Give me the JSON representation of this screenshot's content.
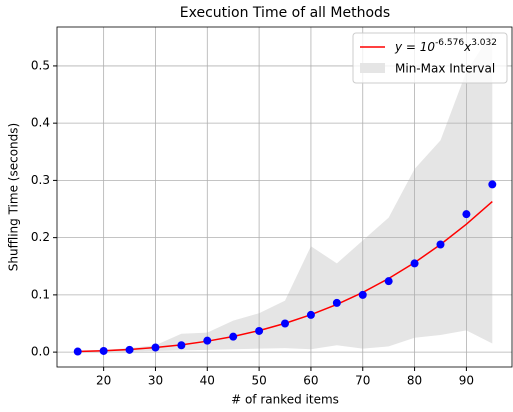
{
  "chart_data": {
    "type": "scatter",
    "title": "Execution Time of all Methods",
    "x_label": "# of ranked items",
    "y_label": "Shuffling Time (seconds)",
    "x": [
      15,
      20,
      25,
      30,
      35,
      40,
      45,
      50,
      55,
      60,
      65,
      70,
      75,
      80,
      85,
      90,
      95
    ],
    "values": [
      0.001,
      0.002,
      0.004,
      0.008,
      0.012,
      0.02,
      0.027,
      0.037,
      0.05,
      0.065,
      0.086,
      0.1,
      0.124,
      0.155,
      0.188,
      0.241,
      0.293
    ],
    "color": "#0000ff",
    "fit": {
      "name": "y = 10^{-6.576}x^{3.032}",
      "color": "#ff0000",
      "values": [
        0.00098,
        0.00234,
        0.0046,
        0.008,
        0.01275,
        0.0191,
        0.0273,
        0.0376,
        0.0502,
        0.0654,
        0.0833,
        0.1043,
        0.1286,
        0.1564,
        0.188,
        0.2235,
        0.263
      ]
    },
    "interval": {
      "name": "Min-Max Interval",
      "color": "#e5e5e5",
      "min": [
        0,
        0.001,
        0.001,
        0.002,
        0.003,
        0.004,
        0.005,
        0.006,
        0.007,
        0.005,
        0.012,
        0.006,
        0.01,
        0.025,
        0.03,
        0.038,
        0.015
      ],
      "max": [
        0.003,
        0.004,
        0.007,
        0.012,
        0.032,
        0.034,
        0.055,
        0.068,
        0.09,
        0.185,
        0.155,
        0.195,
        0.235,
        0.32,
        0.37,
        0.49,
        0.56
      ]
    },
    "xlim": [
      11,
      98.8
    ],
    "ylim": [
      -0.026,
      0.568
    ],
    "xticks": [
      20,
      30,
      40,
      50,
      60,
      70,
      80,
      90
    ],
    "yticks": [
      {
        "value": 0,
        "label": "0.0"
      },
      0.1,
      0.2,
      0.3,
      0.4,
      0.5
    ],
    "grid": true,
    "legend": "upper right"
  }
}
